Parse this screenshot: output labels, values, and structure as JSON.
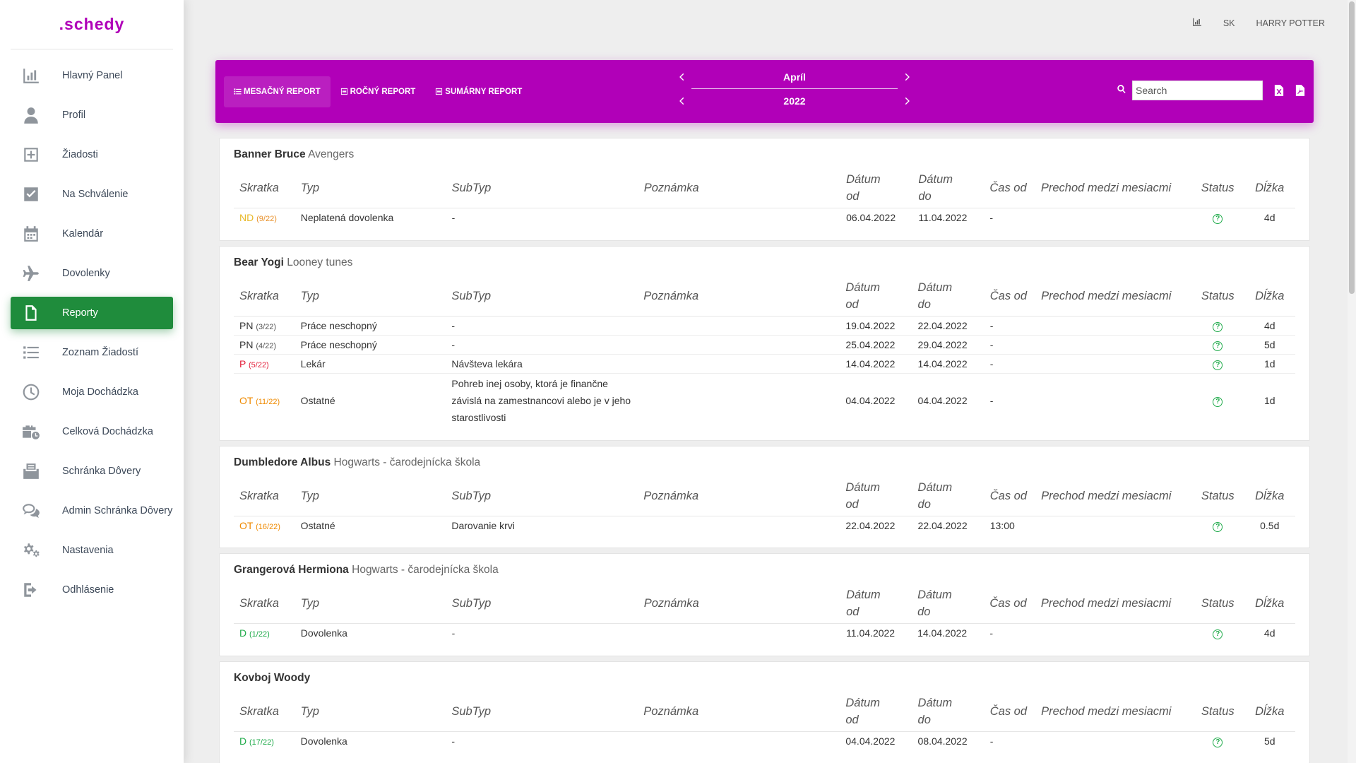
{
  "app": {
    "logo": ".schedy"
  },
  "sidebar": {
    "items": [
      {
        "label": "Hlavný Panel",
        "icon": "chart-bar-icon",
        "active": false
      },
      {
        "label": "Profil",
        "icon": "user-icon",
        "active": false
      },
      {
        "label": "Žiadosti",
        "icon": "plus-square-icon",
        "active": false
      },
      {
        "label": "Na Schválenie",
        "icon": "check-square-icon",
        "active": false
      },
      {
        "label": "Kalendár",
        "icon": "calendar-icon",
        "active": false
      },
      {
        "label": "Dovolenky",
        "icon": "plane-icon",
        "active": false
      },
      {
        "label": "Reporty",
        "icon": "file-icon",
        "active": true
      },
      {
        "label": "Zoznam Žiadostí",
        "icon": "list-icon",
        "active": false
      },
      {
        "label": "Moja Dochádzka",
        "icon": "clock-icon",
        "active": false
      },
      {
        "label": "Celková Dochádzka",
        "icon": "briefcase-clock-icon",
        "active": false
      },
      {
        "label": "Schránka Dôvery",
        "icon": "mailbox-icon",
        "active": false
      },
      {
        "label": "Admin Schránka Dôvery",
        "icon": "comments-icon",
        "active": false
      },
      {
        "label": "Nastavenia",
        "icon": "cogs-icon",
        "active": false
      },
      {
        "label": "Odhlásenie",
        "icon": "sign-out-icon",
        "active": false
      }
    ]
  },
  "topbar": {
    "chart_icon": "chart-icon",
    "language": "SK",
    "user": "HARRY POTTER"
  },
  "report_bar": {
    "tabs": [
      {
        "label": "MESAČNÝ REPORT",
        "active": true
      },
      {
        "label": "ROČNÝ REPORT",
        "active": false
      },
      {
        "label": "SUMÁRNY REPORT",
        "active": false
      }
    ],
    "month": "Apríl",
    "year": "2022",
    "search_placeholder": "Search",
    "export_excel_icon": "file-excel-icon",
    "export_pdf_icon": "file-pdf-icon",
    "accent_color": "#b100b8"
  },
  "columns": [
    "Skratka",
    "Typ",
    "SubTyp",
    "Poznámka",
    "Dátum od",
    "Dátum do",
    "Čas od",
    "Prechod medzi mesiacmi",
    "Status",
    "Dĺžka"
  ],
  "columns_split": {
    "datum_od_1": "Dátum",
    "datum_od_2": "od",
    "datum_do_1": "Dátum",
    "datum_do_2": "do"
  },
  "groups": [
    {
      "name": "Banner Bruce",
      "team": "Avengers",
      "rows": [
        {
          "code": "ND",
          "seq": "(9/22)",
          "color": "#e8b829",
          "typ": "Neplatená dovolenka",
          "subtyp": "-",
          "poznamka": "",
          "od": "06.04.2022",
          "do": "11.04.2022",
          "cas": "-",
          "prechod": "",
          "status": "pending-icon",
          "dlzka": "4d"
        }
      ]
    },
    {
      "name": "Bear Yogi",
      "team": "Looney tunes",
      "rows": [
        {
          "code": "PN",
          "seq": "(3/22)",
          "color": "#333333",
          "typ": "Práce neschopný",
          "subtyp": "-",
          "poznamka": "",
          "od": "19.04.2022",
          "do": "22.04.2022",
          "cas": "-",
          "prechod": "",
          "status": "pending-icon",
          "dlzka": "4d"
        },
        {
          "code": "PN",
          "seq": "(4/22)",
          "color": "#333333",
          "typ": "Práce neschopný",
          "subtyp": "-",
          "poznamka": "",
          "od": "25.04.2022",
          "do": "29.04.2022",
          "cas": "-",
          "prechod": "",
          "status": "pending-icon",
          "dlzka": "5d"
        },
        {
          "code": "P",
          "seq": "(5/22)",
          "color": "#e31f3a",
          "typ": "Lekár",
          "subtyp": "Návšteva lekára",
          "poznamka": "",
          "od": "14.04.2022",
          "do": "14.04.2022",
          "cas": "-",
          "prechod": "",
          "status": "pending-icon",
          "dlzka": "1d"
        },
        {
          "code": "OT",
          "seq": "(11/22)",
          "color": "#ef8a00",
          "typ": "Ostatné",
          "subtyp": "Pohreb inej osoby, ktorá je finančne závislá na zamestnancovi alebo je v jeho starostlivosti",
          "poznamka": "",
          "od": "04.04.2022",
          "do": "04.04.2022",
          "cas": "-",
          "prechod": "",
          "status": "pending-icon",
          "dlzka": "1d"
        }
      ]
    },
    {
      "name": "Dumbledore Albus",
      "team": "Hogwarts - čarodejnícka škola",
      "rows": [
        {
          "code": "OT",
          "seq": "(16/22)",
          "color": "#ef8a00",
          "typ": "Ostatné",
          "subtyp": "Darovanie krvi",
          "poznamka": "",
          "od": "22.04.2022",
          "do": "22.04.2022",
          "cas": "13:00",
          "prechod": "",
          "status": "pending-icon",
          "dlzka": "0.5d"
        }
      ]
    },
    {
      "name": "Grangerová Hermiona",
      "team": "Hogwarts - čarodejnícka škola",
      "rows": [
        {
          "code": "D",
          "seq": "(1/22)",
          "color": "#1fab4a",
          "typ": "Dovolenka",
          "subtyp": "-",
          "poznamka": "",
          "od": "11.04.2022",
          "do": "14.04.2022",
          "cas": "-",
          "prechod": "",
          "status": "pending-icon",
          "dlzka": "4d"
        }
      ]
    },
    {
      "name": "Kovboj Woody",
      "team": "",
      "rows": [
        {
          "code": "D",
          "seq": "(17/22)",
          "color": "#1fab4a",
          "typ": "Dovolenka",
          "subtyp": "-",
          "poznamka": "",
          "od": "04.04.2022",
          "do": "08.04.2022",
          "cas": "-",
          "prechod": "",
          "status": "pending-icon",
          "dlzka": "5d"
        }
      ]
    }
  ]
}
